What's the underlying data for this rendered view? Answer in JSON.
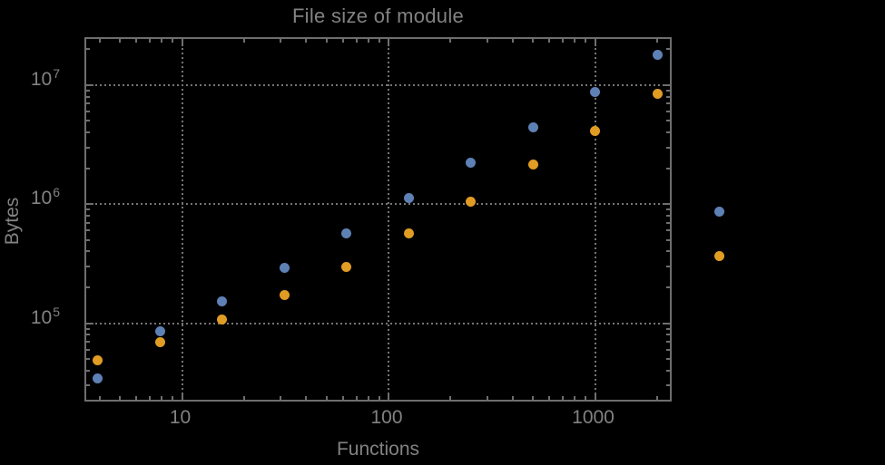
{
  "title": "File size of module",
  "colors": {
    "background": "#000000",
    "frame": "#6E6E6E",
    "grid": "#757575",
    "text": "#828282",
    "series1": "#5E81B5",
    "series2": "#E19C24"
  },
  "chart_data": {
    "type": "scatter",
    "title": "File size of module",
    "xlabel": "Functions",
    "ylabel": "Bytes",
    "x_scale": "log",
    "y_scale": "log",
    "xlim": [
      3.44,
      2400
    ],
    "ylim": [
      21200,
      24400000
    ],
    "grid": "dotted gridlines at decade ticks, all four frame edges ticked",
    "legend": "none",
    "x_ticks_major": [
      10,
      100,
      1000
    ],
    "x_tick_labels": [
      "10",
      "100",
      "1000"
    ],
    "y_ticks_major": [
      100000,
      1000000,
      10000000
    ],
    "y_tick_labels": [
      "10^5",
      "10^6",
      "10^7"
    ],
    "x": [
      4,
      8,
      16,
      32,
      64,
      128,
      256,
      512,
      1024,
      2048,
      4096
    ],
    "series": [
      {
        "name": "series-1-blue",
        "color": "#5E81B5",
        "values": [
          33000,
          83000,
          146000,
          280000,
          545000,
          1080000,
          2170000,
          4300000,
          8400000,
          17200000,
          830000
        ]
      },
      {
        "name": "series-2-orange",
        "color": "#E19C24",
        "values": [
          47000,
          67000,
          103000,
          165000,
          285000,
          545000,
          1020000,
          2060000,
          4000000,
          8200000,
          355000
        ]
      }
    ],
    "note": "points at x=4096 are drawn outside the right edge of the plot frame (unclipped)"
  }
}
